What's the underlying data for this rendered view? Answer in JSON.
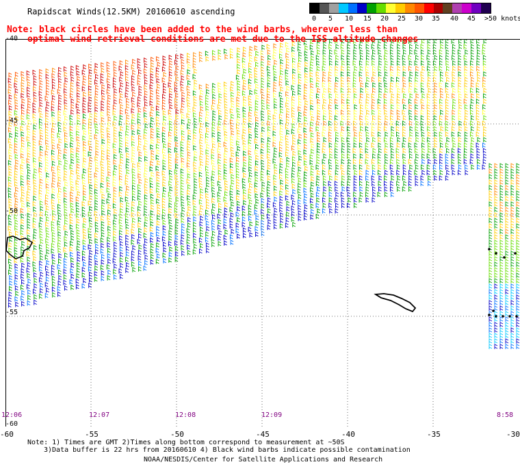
{
  "header": {
    "title": "Rapidscat Winds(12.5KM) 20160610 ascending",
    "note_line1": "Note: black circles have been added to the wind barbs, wherever less than",
    "note_line2": "optimal wind retrieval conditions are met due to the ISS altitude changes"
  },
  "colorbar": {
    "labels": [
      "0",
      "5",
      "10",
      "15",
      "20",
      "25",
      "30",
      "35",
      "40",
      "45",
      ">50 knots"
    ],
    "colors": [
      "#000000",
      "#555555",
      "#a0a0a0",
      "#00c8ff",
      "#0070ff",
      "#0000c8",
      "#00a000",
      "#66dd00",
      "#ffff33",
      "#ffcc00",
      "#ff8800",
      "#ff5500",
      "#ff0000",
      "#aa0000",
      "#604020",
      "#b040b0",
      "#cc00cc",
      "#7000c0",
      "#200050"
    ]
  },
  "map": {
    "lat_labels": [
      "-40",
      "-45",
      "-50",
      "-55",
      "-60"
    ],
    "lon_labels": [
      "-60",
      "-55",
      "-50",
      "-45",
      "-40",
      "-35",
      "-30"
    ],
    "time_labels": [
      "12:06",
      "12:07",
      "12:08",
      "12:09",
      "8:58"
    ]
  },
  "footer": {
    "note1": "Note: 1) Times are GMT 2)Times along bottom correspond to measurement at ~50S",
    "note2": "3)Data buffer is 22 hrs from 20160610 4) Black wind barbs indicate possible contamination",
    "credit": "NOAA/NESDIS/Center for Satellite Applications and Research"
  }
}
